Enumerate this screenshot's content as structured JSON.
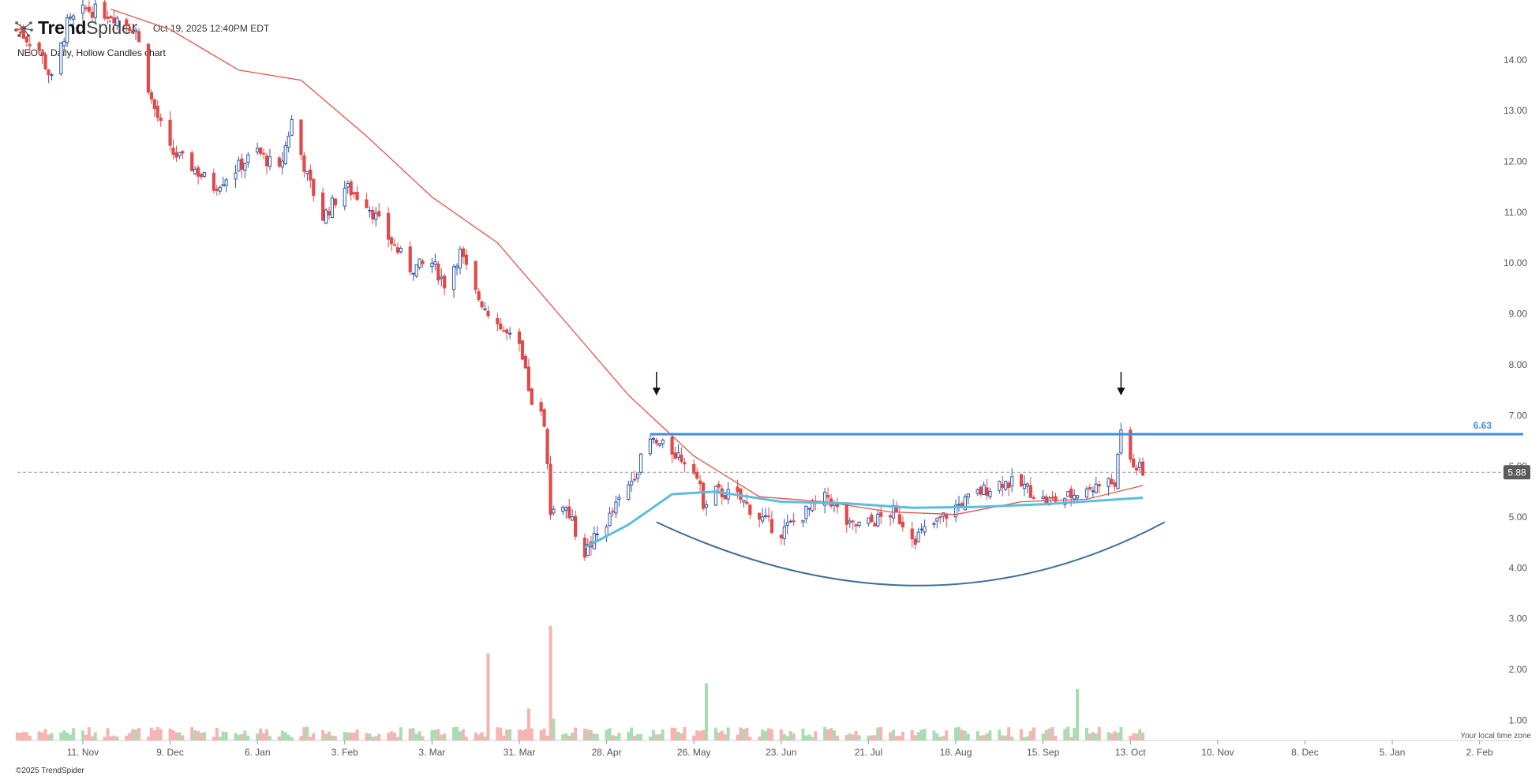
{
  "brand": {
    "name_bold": "Trend",
    "name_light": "Spider",
    "timestamp": "Oct 19, 2025 12:40PM EDT"
  },
  "chart_title": "NEOG, Daily, Hollow Candles chart",
  "footer": {
    "copyright": "©2025 TrendSpider",
    "timezone_note": "Your local time zone"
  },
  "colors": {
    "up": "#2f57a8",
    "down": "#e04a4a",
    "ma_short": "#e0554a",
    "ma_long": "#5bbde0",
    "resistance": "#3d8ee6",
    "base_arc": "#3f6f99",
    "volume_up": "#a9dcb2",
    "volume_down": "#f4b4b2"
  },
  "chart_data": {
    "type": "candlestick",
    "ticker": "NEOG",
    "interval": "Daily",
    "style": "Hollow Candles",
    "y_ticks": [
      "14.00",
      "13.00",
      "12.00",
      "11.00",
      "10.00",
      "9.00",
      "8.00",
      "7.00",
      "6.00",
      "5.00",
      "4.00",
      "3.00",
      "2.00",
      "1.00"
    ],
    "ylim": [
      0.6,
      14.9
    ],
    "x_ticks": [
      "11. Nov",
      "9. Dec",
      "6. Jan",
      "3. Feb",
      "3. Mar",
      "31. Mar",
      "28. Apr",
      "26. May",
      "23. Jun",
      "21. Jul",
      "18. Aug",
      "15. Sep",
      "13. Oct",
      "10. Nov",
      "8. Dec",
      "5. Jan",
      "2. Feb"
    ],
    "x_range": [
      "2024-10-21",
      "2026-02-16"
    ],
    "last_price": "5.88",
    "resistance": {
      "label": "6.63",
      "value": 6.63,
      "start": "2025-05-12"
    },
    "arrows": [
      "2025-05-14",
      "2025-10-10"
    ],
    "base_arc": {
      "start": [
        "2025-05-14",
        4.9
      ],
      "bottom": [
        "2025-08-06",
        3.65
      ],
      "end": [
        "2025-10-24",
        4.9
      ]
    },
    "volume_spikes": [
      {
        "date": "2025-03-21",
        "ratio": 0.76
      },
      {
        "date": "2025-04-10",
        "ratio": 1.0
      },
      {
        "date": "2025-04-11",
        "ratio": 0.19
      },
      {
        "date": "2025-04-03",
        "ratio": 0.28
      },
      {
        "date": "2025-05-30",
        "ratio": 0.5
      },
      {
        "date": "2025-09-26",
        "ratio": 0.45
      }
    ],
    "close_path": [
      [
        "2024-10-21",
        14.6
      ],
      [
        "2024-10-28",
        14.2
      ],
      [
        "2024-11-01",
        13.6
      ],
      [
        "2024-11-06",
        14.7
      ],
      [
        "2024-11-12",
        15.0
      ],
      [
        "2024-11-20",
        14.9
      ],
      [
        "2024-11-28",
        14.6
      ],
      [
        "2024-12-03",
        13.2
      ],
      [
        "2024-12-09",
        12.2
      ],
      [
        "2024-12-16",
        11.9
      ],
      [
        "2024-12-23",
        11.5
      ],
      [
        "2024-12-31",
        11.9
      ],
      [
        "2025-01-06",
        12.2
      ],
      [
        "2025-01-13",
        11.8
      ],
      [
        "2025-01-17",
        12.8
      ],
      [
        "2025-01-22",
        11.7
      ],
      [
        "2025-01-27",
        10.9
      ],
      [
        "2025-02-03",
        11.5
      ],
      [
        "2025-02-10",
        11.2
      ],
      [
        "2025-02-17",
        10.5
      ],
      [
        "2025-02-24",
        9.9
      ],
      [
        "2025-03-03",
        10.0
      ],
      [
        "2025-03-07",
        9.6
      ],
      [
        "2025-03-12",
        10.2
      ],
      [
        "2025-03-17",
        9.4
      ],
      [
        "2025-03-24",
        8.8
      ],
      [
        "2025-03-31",
        8.3
      ],
      [
        "2025-04-04",
        7.3
      ],
      [
        "2025-04-08",
        6.9
      ],
      [
        "2025-04-10",
        5.1
      ],
      [
        "2025-04-14",
        5.3
      ],
      [
        "2025-04-21",
        4.3
      ],
      [
        "2025-04-28",
        4.9
      ],
      [
        "2025-05-05",
        5.6
      ],
      [
        "2025-05-12",
        6.5
      ],
      [
        "2025-05-19",
        6.3
      ],
      [
        "2025-05-26",
        6.0
      ],
      [
        "2025-05-29",
        5.3
      ],
      [
        "2025-06-02",
        5.5
      ],
      [
        "2025-06-09",
        5.4
      ],
      [
        "2025-06-16",
        5.0
      ],
      [
        "2025-06-23",
        4.7
      ],
      [
        "2025-07-01",
        5.1
      ],
      [
        "2025-07-08",
        5.4
      ],
      [
        "2025-07-15",
        4.8
      ],
      [
        "2025-07-22",
        4.9
      ],
      [
        "2025-07-29",
        5.1
      ],
      [
        "2025-08-05",
        4.6
      ],
      [
        "2025-08-12",
        4.9
      ],
      [
        "2025-08-18",
        5.2
      ],
      [
        "2025-08-26",
        5.5
      ],
      [
        "2025-09-02",
        5.7
      ],
      [
        "2025-09-09",
        5.6
      ],
      [
        "2025-09-16",
        5.3
      ],
      [
        "2025-09-23",
        5.4
      ],
      [
        "2025-10-01",
        5.6
      ],
      [
        "2025-10-08",
        5.7
      ],
      [
        "2025-10-10",
        6.6
      ],
      [
        "2025-10-13",
        6.1
      ],
      [
        "2025-10-17",
        5.88
      ]
    ],
    "ma_short_path": [
      [
        "2024-11-20",
        15.0
      ],
      [
        "2024-12-09",
        14.6
      ],
      [
        "2024-12-31",
        13.8
      ],
      [
        "2025-01-20",
        13.6
      ],
      [
        "2025-02-10",
        12.5
      ],
      [
        "2025-03-03",
        11.3
      ],
      [
        "2025-03-24",
        10.4
      ],
      [
        "2025-04-14",
        8.9
      ],
      [
        "2025-05-05",
        7.4
      ],
      [
        "2025-05-26",
        6.2
      ],
      [
        "2025-06-16",
        5.4
      ],
      [
        "2025-07-07",
        5.3
      ],
      [
        "2025-07-28",
        5.1
      ],
      [
        "2025-08-18",
        5.05
      ],
      [
        "2025-09-08",
        5.3
      ],
      [
        "2025-09-29",
        5.35
      ],
      [
        "2025-10-17",
        5.62
      ]
    ],
    "ma_long_path": [
      [
        "2025-04-21",
        4.4
      ],
      [
        "2025-05-05",
        4.85
      ],
      [
        "2025-05-19",
        5.45
      ],
      [
        "2025-06-02",
        5.5
      ],
      [
        "2025-06-23",
        5.3
      ],
      [
        "2025-07-14",
        5.27
      ],
      [
        "2025-08-04",
        5.18
      ],
      [
        "2025-08-25",
        5.2
      ],
      [
        "2025-09-15",
        5.25
      ],
      [
        "2025-10-17",
        5.38
      ]
    ]
  }
}
